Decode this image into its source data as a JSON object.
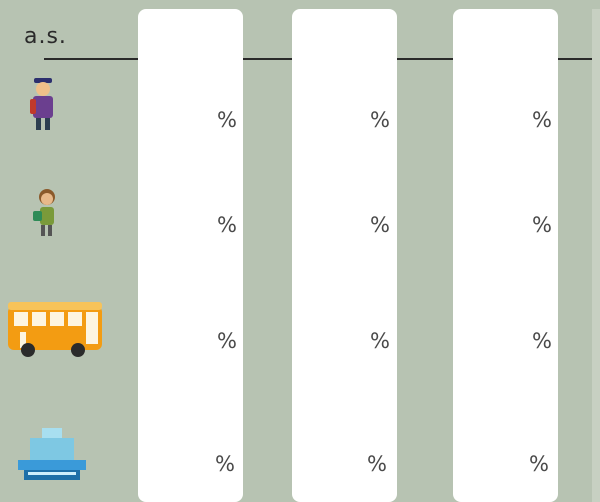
{
  "header": {
    "label": "a.s."
  },
  "rows": [
    {
      "icon": "student-boy-icon",
      "values": [
        "%",
        "%",
        "%"
      ]
    },
    {
      "icon": "student-girl-icon",
      "values": [
        "%",
        "%",
        "%"
      ]
    },
    {
      "icon": "bus-icon",
      "values": [
        "%",
        "%",
        "%"
      ]
    },
    {
      "icon": "school-building-icon",
      "values": [
        "%",
        "%",
        "%"
      ]
    }
  ],
  "colors": {
    "background": "#b7c3b2",
    "column": "#ffffff",
    "bus": "#f39c12",
    "building": "#7ec8e3"
  }
}
